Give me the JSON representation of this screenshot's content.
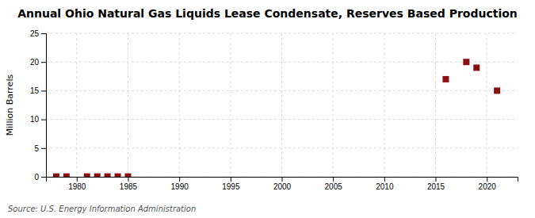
{
  "chart_data": {
    "type": "scatter",
    "title": "Annual Ohio Natural Gas Liquids Lease Condensate, Reserves Based Production",
    "y_label": "Million Barrels",
    "source": "Source: U.S. Energy Information Administration",
    "x": [
      1978,
      1979,
      1981,
      1982,
      1983,
      1984,
      1985,
      2016,
      2018,
      2019,
      2021
    ],
    "values": [
      0.05,
      0.05,
      0.05,
      0.05,
      0.05,
      0.05,
      0.05,
      17.0,
      20.0,
      19.0,
      15.0
    ],
    "color": "#8b1010",
    "marker": "square",
    "xlim": [
      1977,
      2023
    ],
    "ylim": [
      0,
      25
    ],
    "xticks": [
      1980,
      1985,
      1990,
      1995,
      2000,
      2005,
      2010,
      2015,
      2020
    ],
    "yticks": [
      0,
      5,
      10,
      15,
      20,
      25
    ],
    "grid": true
  }
}
